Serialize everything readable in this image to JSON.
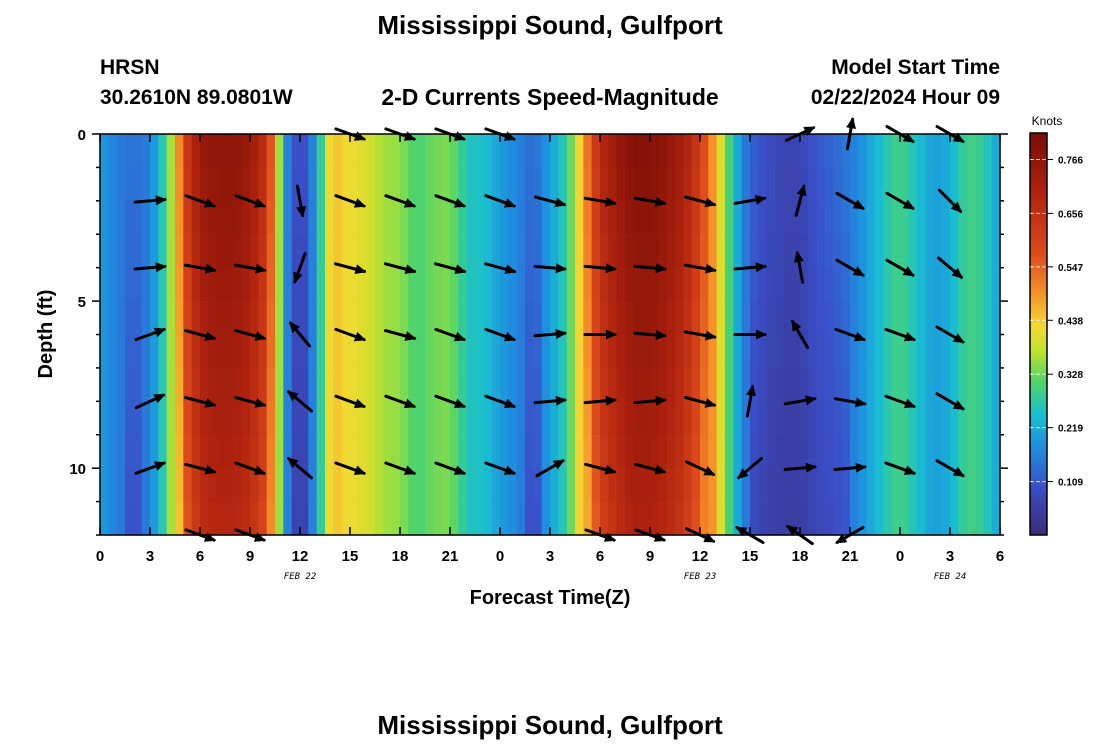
{
  "title": "Mississippi Sound, Gulfport",
  "footer_title": "Mississippi Sound, Gulfport",
  "station": {
    "id": "HRSN",
    "coordinates": "30.2610N  89.0801W"
  },
  "subtitle": "2-D Currents Speed-Magnitude",
  "model_start": {
    "label": "Model Start Time",
    "value": "02/22/2024 Hour 09"
  },
  "chart_data": {
    "type": "heatmap",
    "xlabel": "Forecast Time(Z)",
    "ylabel": "Depth (ft)",
    "x_ticks": [
      "0",
      "3",
      "6",
      "9",
      "12",
      "15",
      "18",
      "21",
      "0",
      "3",
      "6",
      "9",
      "12",
      "15",
      "18",
      "21",
      "0",
      "3",
      "6"
    ],
    "x_hours_range": [
      0,
      54
    ],
    "date_labels": [
      {
        "text": "FEB 22",
        "hour": 12
      },
      {
        "text": "FEB 23",
        "hour": 36
      },
      {
        "text": "FEB 24",
        "hour": 51
      }
    ],
    "y_ticks": [
      0,
      5,
      10
    ],
    "ylim": [
      0,
      12
    ],
    "y_inverted": true,
    "colorbar": {
      "label": "Knots",
      "range": [
        0,
        0.82
      ],
      "ticks": [
        "0.766",
        "0.656",
        "0.547",
        "0.438",
        "0.328",
        "0.219",
        "0.109"
      ],
      "tick_values": [
        0.766,
        0.656,
        0.547,
        0.438,
        0.328,
        0.219,
        0.109
      ]
    },
    "speed_profile": {
      "hours": [
        0,
        1,
        2,
        3,
        4,
        4.6,
        5,
        6,
        7,
        8,
        9,
        10,
        10.6,
        11,
        12,
        13,
        13.6,
        14,
        15,
        16,
        17,
        18,
        19,
        20,
        21,
        22,
        23,
        24,
        25,
        26,
        27,
        28,
        29,
        30,
        31,
        32,
        33,
        34,
        35,
        36,
        37,
        38,
        39,
        40,
        41,
        42,
        43,
        44,
        45,
        46,
        47,
        48,
        49,
        50,
        51,
        52,
        53,
        54
      ],
      "values": [
        0.2,
        0.16,
        0.13,
        0.16,
        0.3,
        0.45,
        0.6,
        0.75,
        0.78,
        0.78,
        0.75,
        0.65,
        0.45,
        0.2,
        0.05,
        0.2,
        0.4,
        0.45,
        0.42,
        0.4,
        0.36,
        0.35,
        0.3,
        0.33,
        0.34,
        0.26,
        0.25,
        0.2,
        0.17,
        0.12,
        0.2,
        0.28,
        0.48,
        0.68,
        0.75,
        0.8,
        0.8,
        0.77,
        0.72,
        0.62,
        0.45,
        0.25,
        0.12,
        0.08,
        0.06,
        0.06,
        0.1,
        0.12,
        0.15,
        0.2,
        0.26,
        0.3,
        0.25,
        0.2,
        0.22,
        0.3,
        0.28,
        0.2
      ]
    },
    "vectors": {
      "hours": [
        3,
        6,
        9,
        12,
        15,
        18,
        21,
        24,
        27,
        30,
        33,
        36,
        39,
        42,
        45,
        48,
        51
      ],
      "depths": [
        0,
        2,
        4,
        6,
        8,
        10,
        12
      ],
      "angles_deg": [
        [
          null,
          null,
          null,
          null,
          -20,
          -20,
          -20,
          -20,
          null,
          null,
          null,
          null,
          null,
          25,
          80,
          -30,
          -30
        ],
        [
          5,
          -20,
          -20,
          -80,
          -20,
          -20,
          -20,
          -20,
          -15,
          -10,
          -10,
          -15,
          10,
          75,
          -30,
          -30,
          -45
        ],
        [
          5,
          -10,
          -10,
          -110,
          -15,
          -15,
          -15,
          -15,
          -5,
          -5,
          -5,
          -10,
          5,
          100,
          -30,
          -30,
          -40
        ],
        [
          20,
          -15,
          -15,
          130,
          -20,
          -15,
          -20,
          -20,
          5,
          0,
          -5,
          -10,
          0,
          120,
          -20,
          -20,
          -30
        ],
        [
          25,
          -15,
          -15,
          140,
          -20,
          -20,
          -20,
          -20,
          5,
          5,
          5,
          -15,
          80,
          10,
          -10,
          -20,
          -30
        ],
        [
          20,
          -15,
          -20,
          140,
          -20,
          -20,
          -20,
          -20,
          30,
          -15,
          -15,
          -25,
          -140,
          5,
          5,
          -20,
          -30
        ],
        [
          null,
          -20,
          -20,
          null,
          null,
          null,
          null,
          null,
          null,
          -20,
          -20,
          -25,
          150,
          145,
          -150,
          null,
          null
        ]
      ]
    }
  }
}
